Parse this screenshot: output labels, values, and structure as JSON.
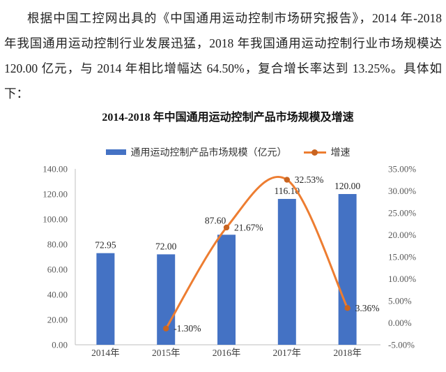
{
  "document": {
    "paragraph_lines": [
      "根据中国工控网出具的《中国通用运动控制市场研究报告》，2014 年-2018",
      "年我国通用运动控制行业发展迅猛，2018 年我国通用运动控制行业市场规模达",
      "120.00 亿元，与 2014 年相比增幅达 64.50%，复合增长率达到 13.25%。具体如",
      "下："
    ]
  },
  "chart_data": {
    "type": "bar+line combo",
    "title": "2014-2018 年中国通用运动控制产品市场规模及增速",
    "categories": [
      "2014年",
      "2015年",
      "2016年",
      "2017年",
      "2018年"
    ],
    "series": [
      {
        "name": "通用运动控制产品市场规模（亿元）",
        "type": "bar",
        "axis": "left",
        "color": "#4472C4",
        "values": [
          72.95,
          72.0,
          87.6,
          116.1,
          120.0
        ],
        "data_labels": [
          "72.95",
          "72.00",
          "87.60",
          "116.10",
          "120.00"
        ]
      },
      {
        "name": "增速",
        "type": "line",
        "axis": "right",
        "smooth": true,
        "color": "#ED7D31",
        "marker_color": "#C96420",
        "values": [
          null,
          -1.3,
          21.67,
          32.53,
          3.36
        ],
        "data_labels": [
          null,
          "-1.30%",
          "21.67%",
          "32.53%",
          "3.36%"
        ]
      }
    ],
    "left_axis": {
      "min": 0,
      "max": 140,
      "tick_values": [
        0,
        20,
        40,
        60,
        80,
        100,
        120,
        140
      ],
      "tick_labels": [
        "0.00",
        "20.00",
        "40.00",
        "60.00",
        "80.00",
        "100.00",
        "120.00",
        "140.00"
      ]
    },
    "right_axis": {
      "min": -5,
      "max": 35,
      "tick_values": [
        -5,
        0,
        5,
        10,
        15,
        20,
        25,
        30,
        35
      ],
      "tick_labels": [
        "-5.00%",
        "0.00%",
        "5.00%",
        "10.00%",
        "15.00%",
        "20.00%",
        "25.00%",
        "30.00%",
        "35.00%"
      ]
    },
    "grid": false,
    "legend_position": "top",
    "axis_color": "#BFBFBF",
    "tick_text_color": "#595959",
    "label_text_color": "#262626"
  }
}
